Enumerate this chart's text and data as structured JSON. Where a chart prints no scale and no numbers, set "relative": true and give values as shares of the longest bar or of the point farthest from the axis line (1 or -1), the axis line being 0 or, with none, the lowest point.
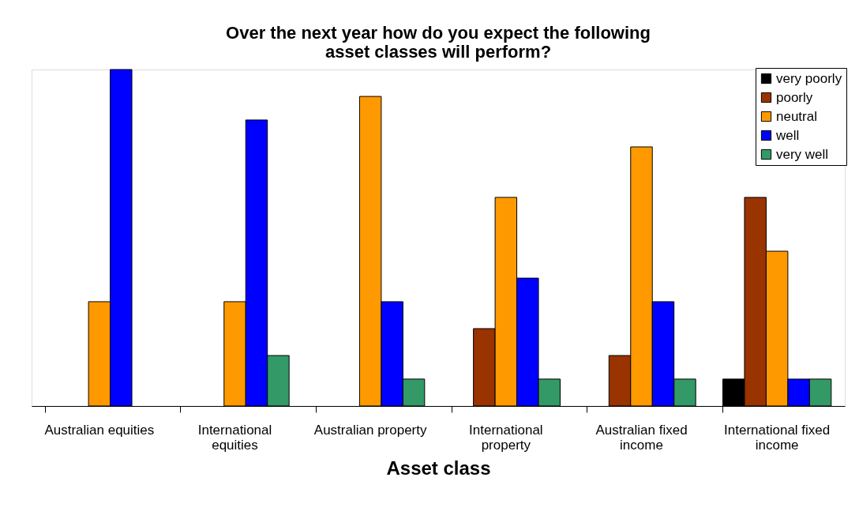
{
  "chart_data": {
    "type": "bar",
    "relative": true,
    "title": "Over the next year how do you expect the following asset classes will perform?",
    "xlabel": "Asset class",
    "categories": [
      "Australian equities",
      "International equities",
      "Australian property",
      "International property",
      "Australian fixed income",
      "International fixed income"
    ],
    "series": [
      {
        "name": "very poorly",
        "color": "#000000",
        "values": [
          null,
          null,
          null,
          null,
          null,
          0.08
        ]
      },
      {
        "name": "poorly",
        "color": "#993300",
        "values": [
          null,
          null,
          null,
          0.23,
          0.15,
          0.62
        ]
      },
      {
        "name": "neutral",
        "color": "#ff9900",
        "values": [
          0.31,
          0.31,
          0.92,
          0.62,
          0.77,
          0.46
        ]
      },
      {
        "name": "well",
        "color": "#0000ff",
        "values": [
          1,
          0.85,
          0.31,
          0.38,
          0.31,
          0.08
        ]
      },
      {
        "name": "very well",
        "color": "#339966",
        "values": [
          null,
          0.15,
          0.08,
          0.08,
          0.08,
          0.08
        ]
      }
    ],
    "legend": "top right",
    "grid": false
  }
}
